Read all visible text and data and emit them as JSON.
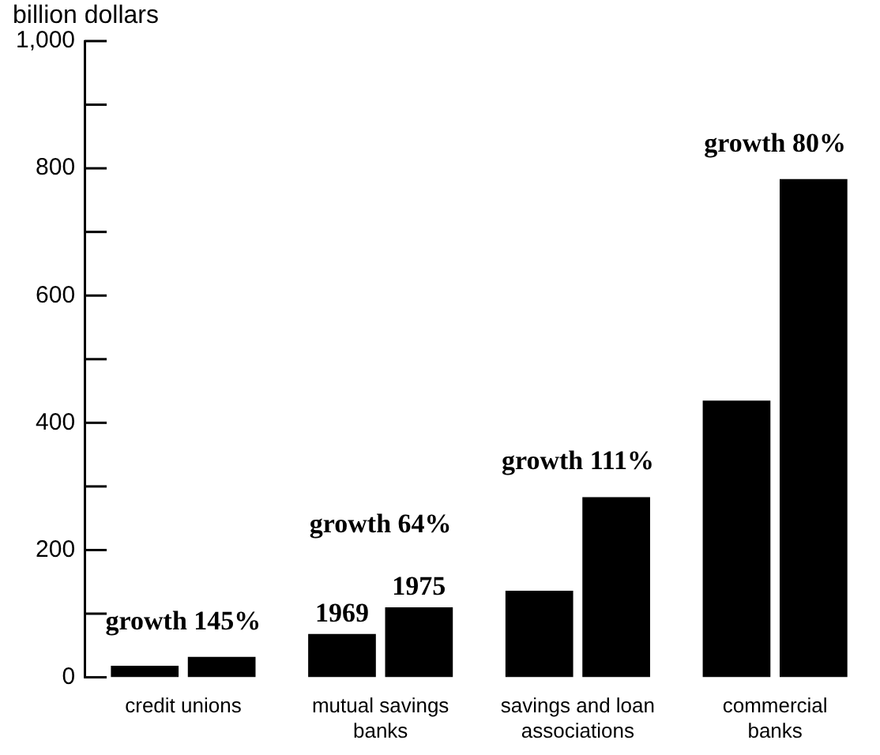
{
  "chart_data": {
    "type": "bar",
    "ylabel": "billion dollars",
    "categories": [
      "credit unions",
      "mutual savings banks",
      "savings and loan associations",
      "commercial banks"
    ],
    "series": [
      {
        "name": "1969",
        "color": "#000000",
        "values": [
          18,
          68,
          136,
          435
        ]
      },
      {
        "name": "1975",
        "color": "#000000",
        "values": [
          32,
          110,
          283,
          783
        ]
      }
    ],
    "ylim": [
      0,
      1000
    ],
    "yticks": [
      0,
      {
        "value": 100,
        "label": null
      },
      200,
      {
        "value": 300,
        "label": null
      },
      400,
      {
        "value": 500,
        "label": null
      },
      600,
      {
        "value": 700,
        "label": null
      },
      800,
      {
        "value": 900,
        "label": null
      },
      {
        "value": 1000,
        "label": "1,000"
      }
    ],
    "grid": false,
    "legend": false,
    "annotations": [
      "growth 145%",
      "growth 64%",
      "growth 111%",
      "growth 80%"
    ]
  }
}
